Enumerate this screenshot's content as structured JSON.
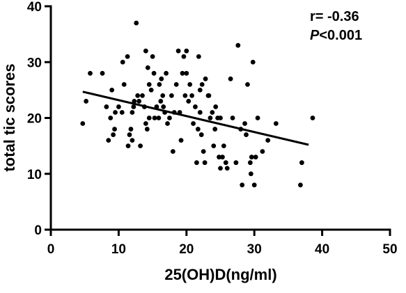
{
  "chart_data": {
    "type": "scatter",
    "xlabel": "25(OH)D(ng/ml)",
    "ylabel": "total tic scores",
    "xlim": [
      0,
      50
    ],
    "ylim": [
      0,
      40
    ],
    "xticks": [
      0,
      10,
      20,
      30,
      40,
      50
    ],
    "yticks": [
      0,
      10,
      20,
      30,
      40
    ],
    "xtick_labels": [
      "0",
      "10",
      "20",
      "30",
      "40",
      "50"
    ],
    "ytick_labels": [
      "0",
      "10",
      "20",
      "30",
      "40"
    ],
    "grid": false,
    "annotation": {
      "r_text": "r= -0.36",
      "p_symbol": "P",
      "p_value": "<0.001"
    },
    "regression_line": {
      "x": [
        4.7,
        38.0
      ],
      "y": [
        24.7,
        15.2
      ]
    },
    "points": [
      [
        4.7,
        19
      ],
      [
        5.2,
        23
      ],
      [
        5.8,
        28
      ],
      [
        7.6,
        28
      ],
      [
        8.2,
        22
      ],
      [
        8.5,
        16
      ],
      [
        8.8,
        20
      ],
      [
        9.0,
        25
      ],
      [
        9.2,
        17
      ],
      [
        9.4,
        18
      ],
      [
        9.5,
        21
      ],
      [
        10.0,
        22
      ],
      [
        10.5,
        21
      ],
      [
        10.6,
        30
      ],
      [
        10.8,
        26
      ],
      [
        11.3,
        31
      ],
      [
        11.4,
        15
      ],
      [
        11.6,
        17
      ],
      [
        11.8,
        18
      ],
      [
        12.0,
        16
      ],
      [
        12.0,
        21
      ],
      [
        12.2,
        22
      ],
      [
        12.3,
        23
      ],
      [
        12.6,
        37
      ],
      [
        12.8,
        24
      ],
      [
        13.0,
        23
      ],
      [
        13.2,
        15
      ],
      [
        13.5,
        24
      ],
      [
        13.8,
        22
      ],
      [
        14.0,
        32
      ],
      [
        14.0,
        19
      ],
      [
        14.2,
        18
      ],
      [
        14.3,
        29
      ],
      [
        14.5,
        26
      ],
      [
        14.5,
        20
      ],
      [
        14.8,
        25
      ],
      [
        15.0,
        31
      ],
      [
        15.2,
        28
      ],
      [
        15.3,
        20
      ],
      [
        15.6,
        22
      ],
      [
        15.9,
        20
      ],
      [
        16.0,
        26
      ],
      [
        16.2,
        23
      ],
      [
        16.3,
        27
      ],
      [
        16.5,
        24
      ],
      [
        16.6,
        22
      ],
      [
        16.8,
        21
      ],
      [
        17.0,
        28
      ],
      [
        17.2,
        19
      ],
      [
        17.5,
        20
      ],
      [
        17.8,
        24
      ],
      [
        18.0,
        14
      ],
      [
        18.2,
        21
      ],
      [
        18.5,
        26
      ],
      [
        18.8,
        32
      ],
      [
        19.0,
        21
      ],
      [
        19.2,
        16
      ],
      [
        19.4,
        28
      ],
      [
        19.6,
        31
      ],
      [
        19.8,
        24
      ],
      [
        20.0,
        32
      ],
      [
        20.0,
        28
      ],
      [
        20.3,
        23
      ],
      [
        20.5,
        26
      ],
      [
        20.8,
        24
      ],
      [
        21.0,
        19
      ],
      [
        21.3,
        22
      ],
      [
        21.5,
        12
      ],
      [
        21.7,
        18
      ],
      [
        21.8,
        31
      ],
      [
        22.0,
        25
      ],
      [
        22.0,
        21
      ],
      [
        22.2,
        17
      ],
      [
        22.3,
        26
      ],
      [
        22.5,
        14
      ],
      [
        22.7,
        12
      ],
      [
        22.8,
        27
      ],
      [
        23.2,
        24
      ],
      [
        23.3,
        24
      ],
      [
        23.5,
        20
      ],
      [
        23.8,
        21
      ],
      [
        24.0,
        15
      ],
      [
        24.2,
        18
      ],
      [
        24.3,
        22
      ],
      [
        24.6,
        20
      ],
      [
        24.8,
        13
      ],
      [
        25.0,
        20
      ],
      [
        25.0,
        11
      ],
      [
        25.3,
        13
      ],
      [
        25.5,
        15
      ],
      [
        25.8,
        12
      ],
      [
        26.0,
        11
      ],
      [
        26.5,
        27
      ],
      [
        26.8,
        20
      ],
      [
        27.3,
        12
      ],
      [
        27.6,
        33
      ],
      [
        28.0,
        18
      ],
      [
        28.2,
        8
      ],
      [
        28.6,
        19
      ],
      [
        28.8,
        17
      ],
      [
        29.0,
        26
      ],
      [
        29.4,
        12
      ],
      [
        29.5,
        10
      ],
      [
        29.6,
        13
      ],
      [
        29.8,
        30
      ],
      [
        30.0,
        8
      ],
      [
        30.2,
        13
      ],
      [
        30.5,
        20
      ],
      [
        31.2,
        14
      ],
      [
        32.0,
        16
      ],
      [
        33.2,
        19
      ],
      [
        36.8,
        8
      ],
      [
        37.0,
        12
      ],
      [
        38.6,
        20
      ]
    ]
  }
}
